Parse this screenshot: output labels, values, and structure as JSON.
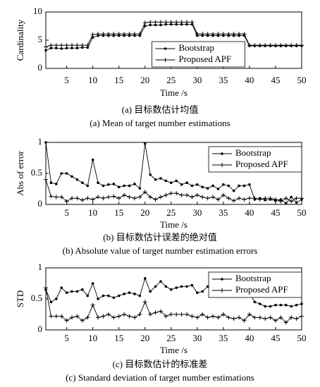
{
  "chart_data": [
    {
      "type": "line",
      "title": "(a) 目标数估计均值",
      "subtitle": "(a) Mean of target number estimations",
      "xlabel": "Time /s",
      "ylabel": "Cardinality",
      "x": [
        1,
        2,
        3,
        4,
        5,
        6,
        7,
        8,
        9,
        10,
        11,
        12,
        13,
        14,
        15,
        16,
        17,
        18,
        19,
        20,
        21,
        22,
        23,
        24,
        25,
        26,
        27,
        28,
        29,
        30,
        31,
        32,
        33,
        34,
        35,
        36,
        37,
        38,
        39,
        40,
        41,
        42,
        43,
        44,
        45,
        46,
        47,
        48,
        49,
        50
      ],
      "xlim": [
        1,
        50
      ],
      "xticks": [
        5,
        10,
        15,
        20,
        25,
        30,
        35,
        40,
        45,
        50
      ],
      "ylim": [
        0,
        10
      ],
      "yticks": [
        0,
        5,
        10
      ],
      "legend": "lower center",
      "series": [
        {
          "name": "Bootstrap",
          "color": "#000000",
          "marker": "dot",
          "values": [
            3.2,
            3.6,
            3.6,
            3.5,
            3.6,
            3.6,
            3.6,
            3.7,
            3.7,
            5.5,
            5.8,
            5.8,
            5.8,
            5.8,
            5.8,
            5.8,
            5.8,
            5.8,
            5.8,
            7.5,
            7.7,
            7.7,
            7.7,
            7.8,
            7.8,
            7.8,
            7.8,
            7.8,
            7.8,
            5.8,
            5.8,
            5.8,
            5.8,
            5.8,
            5.8,
            5.8,
            5.8,
            5.8,
            5.8,
            4.0,
            4.0,
            4.0,
            4.0,
            4.0,
            4.0,
            4.0,
            4.0,
            4.0,
            4.0,
            4.0
          ]
        },
        {
          "name": "Proposed APF",
          "color": "#000000",
          "marker": "plus",
          "values": [
            3.8,
            4.1,
            4.1,
            4.1,
            4.1,
            4.1,
            4.1,
            4.1,
            4.1,
            6.0,
            6.1,
            6.1,
            6.1,
            6.1,
            6.1,
            6.1,
            6.1,
            6.1,
            6.1,
            8.1,
            8.2,
            8.2,
            8.2,
            8.2,
            8.2,
            8.2,
            8.2,
            8.2,
            8.2,
            6.1,
            6.1,
            6.1,
            6.1,
            6.1,
            6.1,
            6.1,
            6.1,
            6.1,
            6.1,
            4.1,
            4.1,
            4.1,
            4.1,
            4.1,
            4.1,
            4.1,
            4.1,
            4.1,
            4.1,
            4.1
          ]
        }
      ]
    },
    {
      "type": "line",
      "title": "(b) 目标数估计误差的绝对值",
      "subtitle": "(b) Absolute value of target number estimation errors",
      "xlabel": "Time /s",
      "ylabel": "Abs of error",
      "x": [
        1,
        2,
        3,
        4,
        5,
        6,
        7,
        8,
        9,
        10,
        11,
        12,
        13,
        14,
        15,
        16,
        17,
        18,
        19,
        20,
        21,
        22,
        23,
        24,
        25,
        26,
        27,
        28,
        29,
        30,
        31,
        32,
        33,
        34,
        35,
        36,
        37,
        38,
        39,
        40,
        41,
        42,
        43,
        44,
        45,
        46,
        47,
        48,
        49,
        50
      ],
      "xlim": [
        1,
        50
      ],
      "xticks": [
        5,
        10,
        15,
        20,
        25,
        30,
        35,
        40,
        45,
        50
      ],
      "ylim": [
        0,
        1
      ],
      "yticks": [
        0,
        0.5,
        1
      ],
      "legend": "upper right",
      "series": [
        {
          "name": "Bootstrap",
          "color": "#000000",
          "marker": "dot",
          "values": [
            1.0,
            0.35,
            0.33,
            0.5,
            0.5,
            0.45,
            0.4,
            0.35,
            0.3,
            0.72,
            0.35,
            0.3,
            0.32,
            0.33,
            0.28,
            0.3,
            0.3,
            0.33,
            0.26,
            0.98,
            0.48,
            0.4,
            0.42,
            0.38,
            0.35,
            0.38,
            0.32,
            0.35,
            0.3,
            0.32,
            0.28,
            0.26,
            0.3,
            0.25,
            0.32,
            0.3,
            0.22,
            0.3,
            0.3,
            0.32,
            0.08,
            0.1,
            0.07,
            0.08,
            0.06,
            0.08,
            0.02,
            0.12,
            0.03,
            0.08
          ]
        },
        {
          "name": "Proposed APF",
          "color": "#000000",
          "marker": "plus",
          "values": [
            0.4,
            0.13,
            0.12,
            0.12,
            0.05,
            0.1,
            0.1,
            0.07,
            0.1,
            0.08,
            0.12,
            0.1,
            0.12,
            0.13,
            0.1,
            0.15,
            0.12,
            0.1,
            0.12,
            0.2,
            0.12,
            0.08,
            0.12,
            0.15,
            0.18,
            0.18,
            0.15,
            0.15,
            0.12,
            0.15,
            0.12,
            0.1,
            0.12,
            0.08,
            0.15,
            0.1,
            0.06,
            0.1,
            0.08,
            0.1,
            0.1,
            0.08,
            0.1,
            0.1,
            0.08,
            0.05,
            0.1,
            0.05,
            0.1,
            0.1
          ]
        }
      ]
    },
    {
      "type": "line",
      "title": "(c) 目标数估计的标准差",
      "subtitle": "(c) Standard deviation of target number estimations",
      "xlabel": "Time /s",
      "ylabel": "STD",
      "x": [
        1,
        2,
        3,
        4,
        5,
        6,
        7,
        8,
        9,
        10,
        11,
        12,
        13,
        14,
        15,
        16,
        17,
        18,
        19,
        20,
        21,
        22,
        23,
        24,
        25,
        26,
        27,
        28,
        29,
        30,
        31,
        32,
        33,
        34,
        35,
        36,
        37,
        38,
        39,
        40,
        41,
        42,
        43,
        44,
        45,
        46,
        47,
        48,
        49,
        50
      ],
      "xlim": [
        1,
        50
      ],
      "xticks": [
        5,
        10,
        15,
        20,
        25,
        30,
        35,
        40,
        45,
        50
      ],
      "ylim": [
        0,
        1
      ],
      "yticks": [
        0,
        0.5,
        1
      ],
      "legend": "upper right",
      "series": [
        {
          "name": "Bootstrap",
          "color": "#000000",
          "marker": "dot",
          "values": [
            0.65,
            0.45,
            0.5,
            0.68,
            0.6,
            0.62,
            0.62,
            0.65,
            0.55,
            0.75,
            0.5,
            0.55,
            0.55,
            0.52,
            0.55,
            0.58,
            0.6,
            0.58,
            0.55,
            0.83,
            0.62,
            0.7,
            0.78,
            0.7,
            0.65,
            0.68,
            0.7,
            0.7,
            0.72,
            0.6,
            0.62,
            0.7,
            0.65,
            0.68,
            0.62,
            0.65,
            0.6,
            0.58,
            0.6,
            0.6,
            0.45,
            0.42,
            0.38,
            0.38,
            0.4,
            0.4,
            0.4,
            0.38,
            0.4,
            0.42
          ]
        },
        {
          "name": "Proposed APF",
          "color": "#000000",
          "marker": "plus",
          "values": [
            0.68,
            0.22,
            0.22,
            0.22,
            0.15,
            0.2,
            0.22,
            0.15,
            0.2,
            0.4,
            0.2,
            0.22,
            0.25,
            0.2,
            0.22,
            0.25,
            0.22,
            0.2,
            0.25,
            0.45,
            0.25,
            0.28,
            0.3,
            0.22,
            0.25,
            0.25,
            0.25,
            0.25,
            0.22,
            0.2,
            0.25,
            0.2,
            0.22,
            0.2,
            0.25,
            0.2,
            0.18,
            0.2,
            0.15,
            0.25,
            0.2,
            0.2,
            0.18,
            0.2,
            0.15,
            0.2,
            0.12,
            0.2,
            0.18,
            0.22
          ]
        }
      ]
    }
  ]
}
